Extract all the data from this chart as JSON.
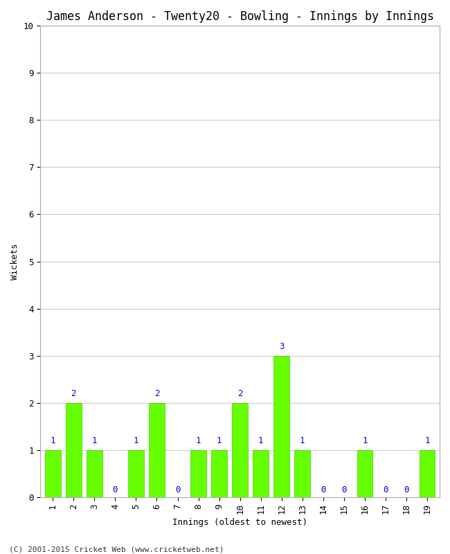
{
  "title": "James Anderson - Twenty20 - Bowling - Innings by Innings",
  "xlabel": "Innings (oldest to newest)",
  "ylabel": "Wickets",
  "categories": [
    "1",
    "2",
    "3",
    "4",
    "5",
    "6",
    "7",
    "8",
    "9",
    "10",
    "11",
    "12",
    "13",
    "14",
    "15",
    "16",
    "17",
    "18",
    "19"
  ],
  "values": [
    1,
    2,
    1,
    0,
    1,
    2,
    0,
    1,
    1,
    2,
    1,
    3,
    1,
    0,
    0,
    1,
    0,
    0,
    1
  ],
  "bar_color": "#66ff00",
  "bar_edge_color": "#44cc00",
  "ylim": [
    0,
    10
  ],
  "yticks": [
    0,
    1,
    2,
    3,
    4,
    5,
    6,
    7,
    8,
    9,
    10
  ],
  "background_color": "#ffffff",
  "plot_bg_color": "#ffffff",
  "grid_color": "#cccccc",
  "title_fontsize": 12,
  "label_fontsize": 9,
  "tick_fontsize": 9,
  "annotation_color": "#0000cc",
  "annotation_fontsize": 9,
  "footer": "(C) 2001-2015 Cricket Web (www.cricketweb.net)"
}
